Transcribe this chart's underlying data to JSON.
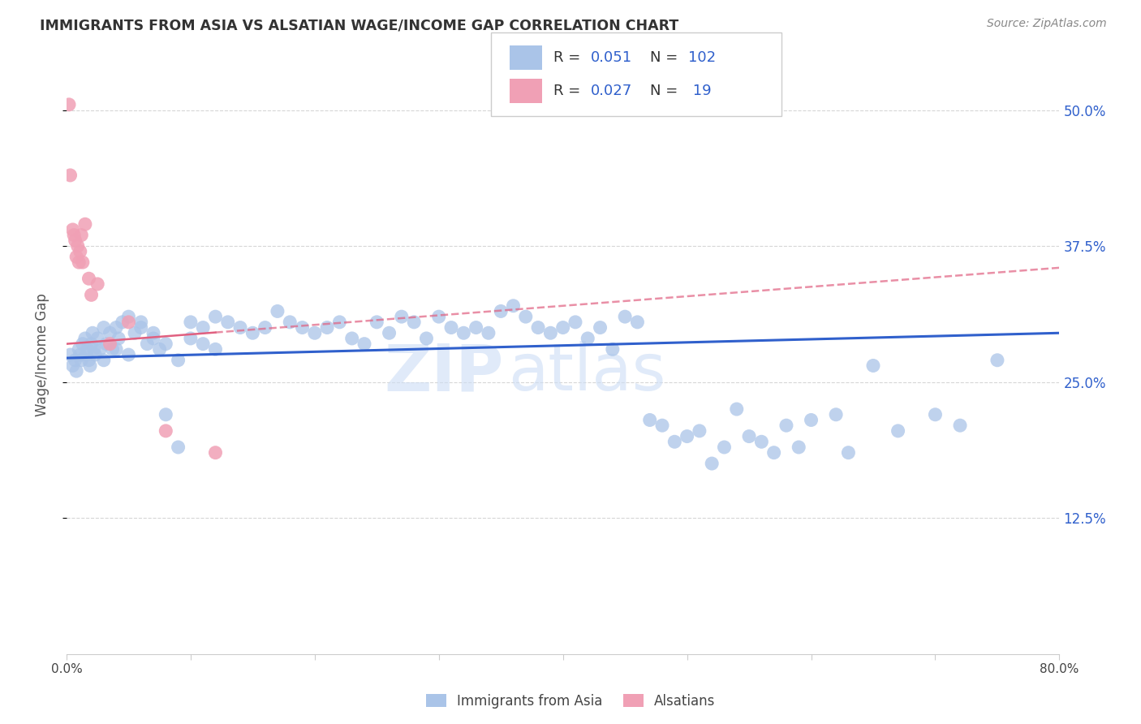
{
  "title": "IMMIGRANTS FROM ASIA VS ALSATIAN WAGE/INCOME GAP CORRELATION CHART",
  "source": "Source: ZipAtlas.com",
  "ylabel": "Wage/Income Gap",
  "ytick_labels": [
    "12.5%",
    "25.0%",
    "37.5%",
    "50.0%"
  ],
  "ytick_values": [
    12.5,
    25.0,
    37.5,
    50.0
  ],
  "xlim": [
    0.0,
    80.0
  ],
  "ylim": [
    0.0,
    55.0
  ],
  "legend_r_blue": "0.051",
  "legend_n_blue": "102",
  "legend_r_pink": "0.027",
  "legend_n_pink": "19",
  "legend_label_blue": "Immigrants from Asia",
  "legend_label_pink": "Alsatians",
  "blue_color": "#aac4e8",
  "pink_color": "#f0a0b5",
  "blue_line_color": "#3060cc",
  "pink_line_color": "#e06080",
  "background_color": "#ffffff",
  "grid_color": "#cccccc",
  "watermark_zip": "ZIP",
  "watermark_atlas": "atlas",
  "blue_scatter_x": [
    0.3,
    0.5,
    0.7,
    0.8,
    1.0,
    1.1,
    1.2,
    1.3,
    1.5,
    1.6,
    1.7,
    1.8,
    1.9,
    2.0,
    2.1,
    2.2,
    2.3,
    2.5,
    2.7,
    3.0,
    3.2,
    3.5,
    3.7,
    4.0,
    4.2,
    4.5,
    5.0,
    5.5,
    6.0,
    6.5,
    7.0,
    7.5,
    8.0,
    9.0,
    10.0,
    11.0,
    12.0,
    13.0,
    14.0,
    15.0,
    16.0,
    17.0,
    18.0,
    19.0,
    20.0,
    21.0,
    22.0,
    23.0,
    24.0,
    25.0,
    26.0,
    27.0,
    28.0,
    29.0,
    30.0,
    31.0,
    32.0,
    33.0,
    34.0,
    35.0,
    36.0,
    37.0,
    38.0,
    39.0,
    40.0,
    41.0,
    42.0,
    43.0,
    44.0,
    45.0,
    46.0,
    47.0,
    48.0,
    49.0,
    50.0,
    51.0,
    52.0,
    53.0,
    54.0,
    55.0,
    56.0,
    57.0,
    58.0,
    59.0,
    60.0,
    62.0,
    63.0,
    65.0,
    67.0,
    70.0,
    72.0,
    75.0,
    3.0,
    4.0,
    5.0,
    6.0,
    7.0,
    8.0,
    9.0,
    10.0,
    11.0,
    12.0
  ],
  "blue_scatter_y": [
    27.5,
    26.5,
    27.0,
    26.0,
    28.0,
    27.5,
    27.0,
    28.5,
    29.0,
    27.5,
    28.0,
    27.0,
    26.5,
    28.5,
    29.5,
    28.0,
    27.5,
    29.0,
    28.0,
    27.0,
    28.5,
    29.5,
    28.0,
    30.0,
    29.0,
    30.5,
    31.0,
    29.5,
    30.0,
    28.5,
    29.0,
    28.0,
    22.0,
    19.0,
    30.5,
    30.0,
    31.0,
    30.5,
    30.0,
    29.5,
    30.0,
    31.5,
    30.5,
    30.0,
    29.5,
    30.0,
    30.5,
    29.0,
    28.5,
    30.5,
    29.5,
    31.0,
    30.5,
    29.0,
    31.0,
    30.0,
    29.5,
    30.0,
    29.5,
    31.5,
    32.0,
    31.0,
    30.0,
    29.5,
    30.0,
    30.5,
    29.0,
    30.0,
    28.0,
    31.0,
    30.5,
    21.5,
    21.0,
    19.5,
    20.0,
    20.5,
    17.5,
    19.0,
    22.5,
    20.0,
    19.5,
    18.5,
    21.0,
    19.0,
    21.5,
    22.0,
    18.5,
    26.5,
    20.5,
    22.0,
    21.0,
    27.0,
    30.0,
    28.0,
    27.5,
    30.5,
    29.5,
    28.5,
    27.0,
    29.0,
    28.5,
    28.0
  ],
  "pink_scatter_x": [
    0.2,
    0.3,
    0.5,
    0.6,
    0.7,
    0.8,
    0.9,
    1.0,
    1.1,
    1.2,
    1.3,
    1.5,
    1.8,
    2.0,
    2.5,
    3.5,
    5.0,
    8.0,
    12.0
  ],
  "pink_scatter_y": [
    50.5,
    44.0,
    39.0,
    38.5,
    38.0,
    36.5,
    37.5,
    36.0,
    37.0,
    38.5,
    36.0,
    39.5,
    34.5,
    33.0,
    34.0,
    28.5,
    30.5,
    20.5,
    18.5
  ],
  "blue_line_x0": 0.0,
  "blue_line_y0": 27.2,
  "blue_line_x1": 80.0,
  "blue_line_y1": 29.5,
  "pink_line_x0": 0.0,
  "pink_line_y0": 28.5,
  "pink_line_x1": 80.0,
  "pink_line_y1": 35.5,
  "pink_solid_end": 12.0
}
